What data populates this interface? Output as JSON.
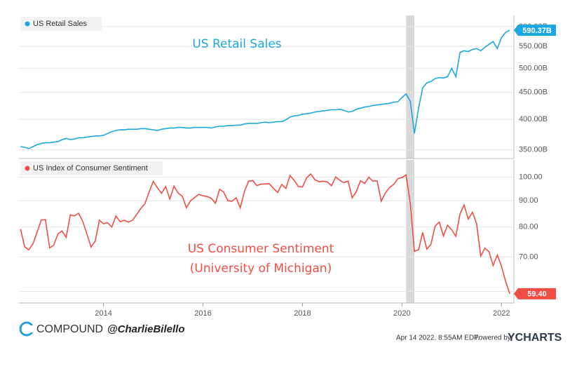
{
  "chart_data": [
    {
      "type": "line",
      "log_y": true,
      "xlim": [
        2012.3,
        2022.25
      ],
      "ylim": [
        337,
        630
      ],
      "yticks": [
        {
          "value": 350,
          "label": "350.00B"
        },
        {
          "value": 400,
          "label": "400.00B"
        },
        {
          "value": 450,
          "label": "450.00B"
        },
        {
          "value": 500,
          "label": "500.00B"
        },
        {
          "value": 550,
          "label": "550.00B"
        },
        {
          "value": 600,
          "label": "600.00B"
        }
      ],
      "grid": true,
      "bands": [
        [
          2020.083,
          2020.25
        ]
      ],
      "annotations": [
        "US Retail Sales"
      ],
      "x": [
        2012.333,
        2012.417,
        2012.5,
        2012.583,
        2012.667,
        2012.75,
        2012.833,
        2012.917,
        2013,
        2013.083,
        2013.167,
        2013.25,
        2013.333,
        2013.417,
        2013.5,
        2013.583,
        2013.667,
        2013.75,
        2013.833,
        2013.917,
        2014,
        2014.083,
        2014.167,
        2014.25,
        2014.333,
        2014.417,
        2014.5,
        2014.583,
        2014.667,
        2014.75,
        2014.833,
        2014.917,
        2015,
        2015.083,
        2015.167,
        2015.25,
        2015.333,
        2015.417,
        2015.5,
        2015.583,
        2015.667,
        2015.75,
        2015.833,
        2015.917,
        2016,
        2016.083,
        2016.167,
        2016.25,
        2016.333,
        2016.417,
        2016.5,
        2016.583,
        2016.667,
        2016.75,
        2016.833,
        2016.917,
        2017,
        2017.083,
        2017.167,
        2017.25,
        2017.333,
        2017.417,
        2017.5,
        2017.583,
        2017.667,
        2017.75,
        2017.833,
        2017.917,
        2018,
        2018.083,
        2018.167,
        2018.25,
        2018.333,
        2018.417,
        2018.5,
        2018.583,
        2018.667,
        2018.75,
        2018.833,
        2018.917,
        2019,
        2019.083,
        2019.167,
        2019.25,
        2019.333,
        2019.417,
        2019.5,
        2019.583,
        2019.667,
        2019.75,
        2019.833,
        2019.917,
        2020,
        2020.083,
        2020.167,
        2020.25,
        2020.333,
        2020.417,
        2020.5,
        2020.583,
        2020.667,
        2020.75,
        2020.833,
        2020.917,
        2021,
        2021.083,
        2021.167,
        2021.25,
        2021.333,
        2021.417,
        2021.5,
        2021.583,
        2021.667,
        2021.75,
        2021.833,
        2021.917,
        2022,
        2022.083,
        2022.167
      ],
      "series": [
        {
          "name": "US Retail Sales",
          "color": "#1ba8e0",
          "values": [
            355,
            354,
            352,
            355,
            358,
            360,
            361,
            361,
            362,
            363,
            366,
            368,
            366,
            367,
            369,
            369,
            370,
            371,
            372,
            372,
            373,
            376,
            379,
            381,
            382,
            382,
            383,
            383,
            383,
            384,
            384,
            383,
            382,
            381,
            383,
            384,
            385,
            385,
            386,
            386,
            385,
            385,
            386,
            386,
            386,
            386,
            385,
            387,
            388,
            388,
            389,
            389,
            390,
            390,
            392,
            393,
            393,
            393,
            394,
            395,
            394,
            395,
            396,
            396,
            399,
            404,
            406,
            407,
            409,
            410,
            411,
            413,
            414,
            415,
            416,
            417,
            417,
            418,
            416,
            413,
            414,
            418,
            420,
            422,
            423,
            425,
            426,
            427,
            428,
            429,
            431,
            432,
            440,
            447,
            433,
            376,
            420,
            459,
            469,
            472,
            478,
            480,
            479,
            482,
            500,
            482,
            536,
            540,
            538,
            543,
            545,
            540,
            548,
            555,
            562,
            545,
            572,
            585,
            590.37
          ],
          "value_labels": {
            "118": "590.37B"
          }
        }
      ]
    },
    {
      "type": "line",
      "log_y": true,
      "xlim": [
        2012.3,
        2022.25
      ],
      "ylim": [
        57,
        108
      ],
      "yticks": [
        {
          "value": 60,
          "label": "60.00"
        },
        {
          "value": 70,
          "label": "70.00"
        },
        {
          "value": 80,
          "label": "80.00"
        },
        {
          "value": 90,
          "label": "90.00"
        },
        {
          "value": 100,
          "label": "100.00"
        }
      ],
      "xticks": [
        2014,
        2016,
        2018,
        2020,
        2022
      ],
      "grid": true,
      "bands": [
        [
          2020.083,
          2020.25
        ]
      ],
      "annotations": [
        "US Consumer Sentiment",
        "(University of Michigan)"
      ],
      "x": [
        2012.333,
        2012.417,
        2012.5,
        2012.583,
        2012.667,
        2012.75,
        2012.833,
        2012.917,
        2013,
        2013.083,
        2013.167,
        2013.25,
        2013.333,
        2013.417,
        2013.5,
        2013.583,
        2013.667,
        2013.75,
        2013.833,
        2013.917,
        2014,
        2014.083,
        2014.167,
        2014.25,
        2014.333,
        2014.417,
        2014.5,
        2014.583,
        2014.667,
        2014.75,
        2014.833,
        2014.917,
        2015,
        2015.083,
        2015.167,
        2015.25,
        2015.333,
        2015.417,
        2015.5,
        2015.583,
        2015.667,
        2015.75,
        2015.833,
        2015.917,
        2016,
        2016.083,
        2016.167,
        2016.25,
        2016.333,
        2016.417,
        2016.5,
        2016.583,
        2016.667,
        2016.75,
        2016.833,
        2016.917,
        2017,
        2017.083,
        2017.167,
        2017.25,
        2017.333,
        2017.417,
        2017.5,
        2017.583,
        2017.667,
        2017.75,
        2017.833,
        2017.917,
        2018,
        2018.083,
        2018.167,
        2018.25,
        2018.333,
        2018.417,
        2018.5,
        2018.583,
        2018.667,
        2018.75,
        2018.833,
        2018.917,
        2019,
        2019.083,
        2019.167,
        2019.25,
        2019.333,
        2019.417,
        2019.5,
        2019.583,
        2019.667,
        2019.75,
        2019.833,
        2019.917,
        2020,
        2020.083,
        2020.167,
        2020.25,
        2020.333,
        2020.417,
        2020.5,
        2020.583,
        2020.667,
        2020.75,
        2020.833,
        2020.917,
        2021,
        2021.083,
        2021.167,
        2021.25,
        2021.333,
        2021.417,
        2021.5,
        2021.583,
        2021.667,
        2021.75,
        2021.833,
        2021.917,
        2022,
        2022.083,
        2022.167
      ],
      "series": [
        {
          "name": "US Index of Consumer Sentiment",
          "color": "#f04e45",
          "values": [
            79.3,
            73.2,
            72.3,
            74.3,
            78.3,
            82.6,
            82.7,
            72.9,
            73.8,
            77.6,
            78.6,
            76.4,
            84.5,
            84.1,
            85.1,
            82.1,
            77.5,
            73.2,
            75.1,
            82.5,
            81.2,
            81.6,
            80.0,
            84.1,
            81.9,
            82.5,
            81.8,
            82.5,
            84.6,
            86.9,
            88.8,
            93.6,
            98.1,
            95.4,
            93.0,
            95.9,
            90.7,
            96.1,
            93.1,
            91.9,
            87.2,
            90.0,
            91.3,
            92.6,
            92.0,
            91.7,
            91.0,
            89.0,
            94.7,
            93.5,
            90.0,
            89.8,
            91.2,
            87.2,
            93.8,
            98.2,
            98.5,
            96.3,
            96.9,
            97.0,
            97.1,
            95.1,
            93.4,
            96.8,
            95.1,
            100.7,
            98.5,
            95.9,
            95.7,
            99.7,
            101.4,
            98.8,
            98.0,
            98.2,
            97.9,
            96.2,
            100.1,
            98.6,
            97.5,
            98.3,
            91.2,
            93.8,
            98.4,
            97.2,
            100.0,
            98.2,
            98.4,
            89.8,
            93.2,
            95.5,
            96.8,
            99.3,
            99.8,
            101.0,
            89.1,
            71.8,
            72.3,
            78.1,
            72.5,
            74.1,
            80.4,
            81.8,
            76.9,
            80.7,
            79.0,
            76.8,
            84.9,
            88.3,
            82.9,
            85.5,
            81.2,
            70.3,
            72.8,
            71.7,
            67.4,
            70.6,
            67.2,
            62.8,
            59.4
          ],
          "value_labels": {
            "118": "59.40"
          }
        }
      ]
    }
  ],
  "footer": {
    "brand": "COMPOUND",
    "handle": "@CharlieBilello",
    "timestamp": "Apr 14 2022, 8:55AM EDT.",
    "powered_by": "Powered by",
    "provider": "YCHARTS"
  }
}
